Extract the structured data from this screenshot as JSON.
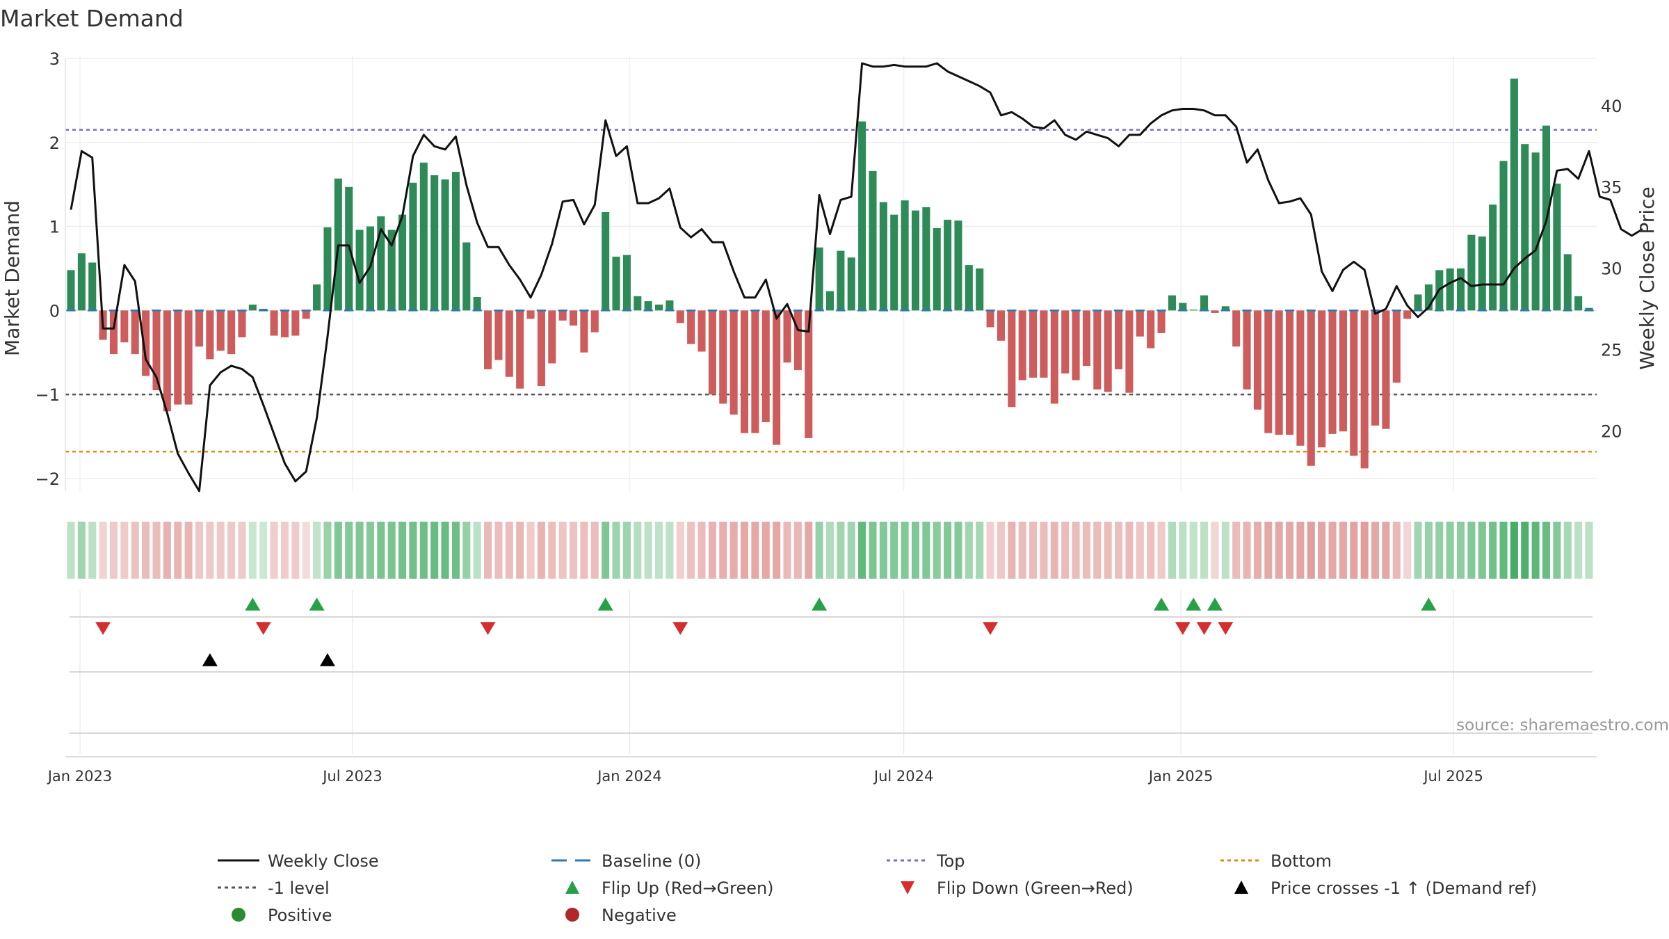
{
  "chart_data": {
    "type": "bar",
    "title": "Market Demand",
    "ylabel": "Market Demand",
    "y2label": "Weekly Close Price",
    "ylim": [
      -2.15,
      3.0
    ],
    "y2lim": [
      16.3,
      42.9
    ],
    "yticks": [
      -2,
      -1,
      0,
      1,
      2,
      3
    ],
    "y2ticks": [
      20,
      25,
      30,
      35,
      40
    ],
    "date_start": "2022-12-26",
    "date_end": "2025-09-29",
    "xticks": [
      {
        "label": "Jan 2023",
        "date": "2023-01-01"
      },
      {
        "label": "Jul 2023",
        "date": "2023-07-01"
      },
      {
        "label": "Jan 2024",
        "date": "2024-01-01"
      },
      {
        "label": "Jul 2024",
        "date": "2024-07-01"
      },
      {
        "label": "Jan 2025",
        "date": "2025-01-01"
      },
      {
        "label": "Jul 2025",
        "date": "2025-07-01"
      }
    ],
    "reference_lines": [
      {
        "name": "Top",
        "value": 2.15,
        "color": "#7b68c8"
      },
      {
        "name": "-1 level",
        "value": -1.0,
        "color": "#555555"
      },
      {
        "name": "Bottom",
        "value": -1.68,
        "color": "#e08a10"
      },
      {
        "name": "Baseline (0)",
        "value": 0,
        "color": "#2a7ab8"
      }
    ],
    "demand_values": [
      0.48,
      0.68,
      0.57,
      -0.35,
      -0.52,
      -0.38,
      -0.52,
      -0.78,
      -0.95,
      -1.2,
      -1.12,
      -1.12,
      -0.43,
      -0.58,
      -0.48,
      -0.52,
      -0.32,
      0.07,
      0.02,
      -0.3,
      -0.32,
      -0.3,
      -0.1,
      0.31,
      0.99,
      1.57,
      1.47,
      0.96,
      1.0,
      1.12,
      0.96,
      1.14,
      1.52,
      1.76,
      1.61,
      1.56,
      1.65,
      0.81,
      0.16,
      -0.7,
      -0.59,
      -0.79,
      -0.93,
      -0.1,
      -0.9,
      -0.63,
      -0.12,
      -0.18,
      -0.5,
      -0.26,
      1.17,
      0.64,
      0.66,
      0.17,
      0.11,
      0.07,
      0.12,
      -0.15,
      -0.4,
      -0.49,
      -1.0,
      -1.11,
      -1.24,
      -1.46,
      -1.46,
      -1.33,
      -1.6,
      -0.62,
      -0.71,
      -1.52,
      0.75,
      0.23,
      0.71,
      0.63,
      2.25,
      1.66,
      1.29,
      1.14,
      1.31,
      1.19,
      1.23,
      0.98,
      1.08,
      1.07,
      0.54,
      0.5,
      -0.2,
      -0.36,
      -1.15,
      -0.83,
      -0.8,
      -0.8,
      -1.11,
      -0.75,
      -0.83,
      -0.66,
      -0.94,
      -0.97,
      -0.7,
      -0.98,
      -0.31,
      -0.45,
      -0.27,
      0.18,
      0.09,
      0.01,
      0.18,
      -0.03,
      0.05,
      -0.43,
      -0.94,
      -1.18,
      -1.46,
      -1.48,
      -1.48,
      -1.61,
      -1.85,
      -1.63,
      -1.47,
      -1.44,
      -1.73,
      -1.88,
      -1.37,
      -1.41,
      -0.86,
      -0.1,
      0.19,
      0.31,
      0.48,
      0.5,
      0.5,
      0.9,
      0.88,
      1.26,
      1.78,
      2.76,
      1.98,
      1.88,
      2.2,
      1.51,
      0.67,
      0.17,
      0.03
    ],
    "close_values": [
      33.6,
      37.2,
      36.8,
      26.3,
      26.3,
      30.2,
      29.2,
      24.4,
      23.3,
      21.1,
      18.6,
      17.4,
      16.3,
      22.8,
      23.6,
      24.0,
      23.8,
      23.3,
      21.6,
      19.8,
      18.0,
      16.9,
      17.5,
      20.8,
      25.8,
      31.4,
      31.4,
      29.1,
      30.1,
      32.4,
      31.4,
      33.2,
      36.9,
      38.2,
      37.5,
      37.3,
      38.1,
      35.1,
      32.8,
      31.3,
      31.3,
      30.2,
      29.3,
      28.2,
      29.6,
      31.5,
      34.1,
      34.2,
      32.7,
      33.9,
      39.1,
      36.9,
      37.5,
      34.0,
      34.0,
      34.3,
      34.9,
      32.5,
      31.9,
      32.4,
      31.6,
      31.6,
      29.8,
      28.2,
      28.2,
      29.3,
      26.9,
      27.8,
      26.2,
      26.1,
      34.5,
      32.1,
      34.2,
      34.4,
      42.6,
      42.4,
      42.4,
      42.5,
      42.4,
      42.4,
      42.4,
      42.6,
      42.1,
      41.8,
      41.5,
      41.2,
      40.8,
      39.4,
      39.6,
      39.2,
      38.7,
      38.6,
      39.1,
      38.2,
      37.9,
      38.4,
      38.2,
      38.0,
      37.5,
      38.2,
      38.2,
      38.9,
      39.4,
      39.7,
      39.8,
      39.8,
      39.7,
      39.4,
      39.4,
      38.7,
      36.5,
      37.3,
      35.4,
      34.0,
      34.1,
      34.3,
      33.3,
      29.8,
      28.6,
      29.9,
      30.4,
      29.9,
      27.2,
      27.5,
      28.9,
      27.7,
      27.0,
      27.6,
      28.7,
      29.1,
      29.4,
      28.9,
      29.0,
      29.0,
      29.0,
      30.0,
      30.6,
      31.1,
      32.9,
      36.0,
      36.1,
      35.5,
      37.2,
      34.4,
      34.2,
      32.4,
      32.0,
      32.4
    ],
    "strip_intensity": [
      0.14,
      0.28,
      0.14,
      0.14,
      0.21,
      0.21,
      0.27,
      0.32,
      0.32,
      0.39,
      0.37,
      0.37,
      0.23,
      0.22,
      0.22,
      0.22,
      0.21,
      0.08,
      0.06,
      0.18,
      0.19,
      0.19,
      0.08,
      0.12,
      0.32,
      0.44,
      0.43,
      0.44,
      0.42,
      0.48,
      0.48,
      0.51,
      0.52,
      0.54,
      0.57,
      0.57,
      0.54,
      0.34,
      0.14,
      0.33,
      0.3,
      0.3,
      0.35,
      0.2,
      0.37,
      0.3,
      0.25,
      0.26,
      0.29,
      0.3,
      0.44,
      0.3,
      0.3,
      0.18,
      0.14,
      0.13,
      0.13,
      0.17,
      0.28,
      0.31,
      0.39,
      0.42,
      0.44,
      0.46,
      0.47,
      0.46,
      0.46,
      0.33,
      0.35,
      0.46,
      0.34,
      0.2,
      0.28,
      0.28,
      0.6,
      0.47,
      0.43,
      0.43,
      0.43,
      0.44,
      0.44,
      0.39,
      0.43,
      0.41,
      0.27,
      0.26,
      0.17,
      0.23,
      0.38,
      0.32,
      0.31,
      0.31,
      0.37,
      0.31,
      0.31,
      0.31,
      0.31,
      0.31,
      0.29,
      0.33,
      0.24,
      0.28,
      0.21,
      0.2,
      0.15,
      0.12,
      0.14,
      0.12,
      0.14,
      0.31,
      0.38,
      0.43,
      0.46,
      0.46,
      0.46,
      0.49,
      0.53,
      0.5,
      0.47,
      0.46,
      0.51,
      0.55,
      0.46,
      0.48,
      0.34,
      0.12,
      0.27,
      0.33,
      0.35,
      0.37,
      0.37,
      0.43,
      0.45,
      0.51,
      0.6,
      0.74,
      0.7,
      0.62,
      0.56,
      0.42,
      0.25,
      0.15,
      0.15
    ],
    "flip_up_weeks": [
      17,
      23,
      50,
      70,
      102,
      105,
      107,
      127
    ],
    "flip_down_weeks": [
      3,
      18,
      39,
      57,
      86,
      104,
      106,
      108
    ],
    "price_cross_weeks": [
      13,
      24
    ],
    "legend": [
      {
        "label": "Weekly Close",
        "kind": "line",
        "color": "#111111",
        "dash": ""
      },
      {
        "label": "Baseline (0)",
        "kind": "line",
        "color": "#2a7ab8",
        "dash": "22,12"
      },
      {
        "label": "Top",
        "kind": "line",
        "color": "#7b68c8",
        "dash": "5,5"
      },
      {
        "label": "Bottom",
        "kind": "line",
        "color": "#e08a10",
        "dash": "5,5"
      },
      {
        "label": "-1 level",
        "kind": "line",
        "color": "#555555",
        "dash": "5,5"
      },
      {
        "label": "Flip Up (Red→Green)",
        "kind": "tri-up",
        "color": "#27a048"
      },
      {
        "label": "Flip Down (Green→Red)",
        "kind": "tri-down",
        "color": "#d62e2e"
      },
      {
        "label": "Price crosses -1 ↑ (Demand ref)",
        "kind": "tri-up",
        "color": "#000000"
      },
      {
        "label": "Positive",
        "kind": "dot",
        "color": "#2a8c32"
      },
      {
        "label": "Negative",
        "kind": "dot",
        "color": "#b02828"
      }
    ],
    "source": "source: sharemaestro.com"
  },
  "colors": {
    "positive_bar": "#2e8b57",
    "negative_bar": "#cd5c5c",
    "strip_positive": "#3aa85a",
    "strip_negative": "#c9524e",
    "price_line": "#111111"
  }
}
